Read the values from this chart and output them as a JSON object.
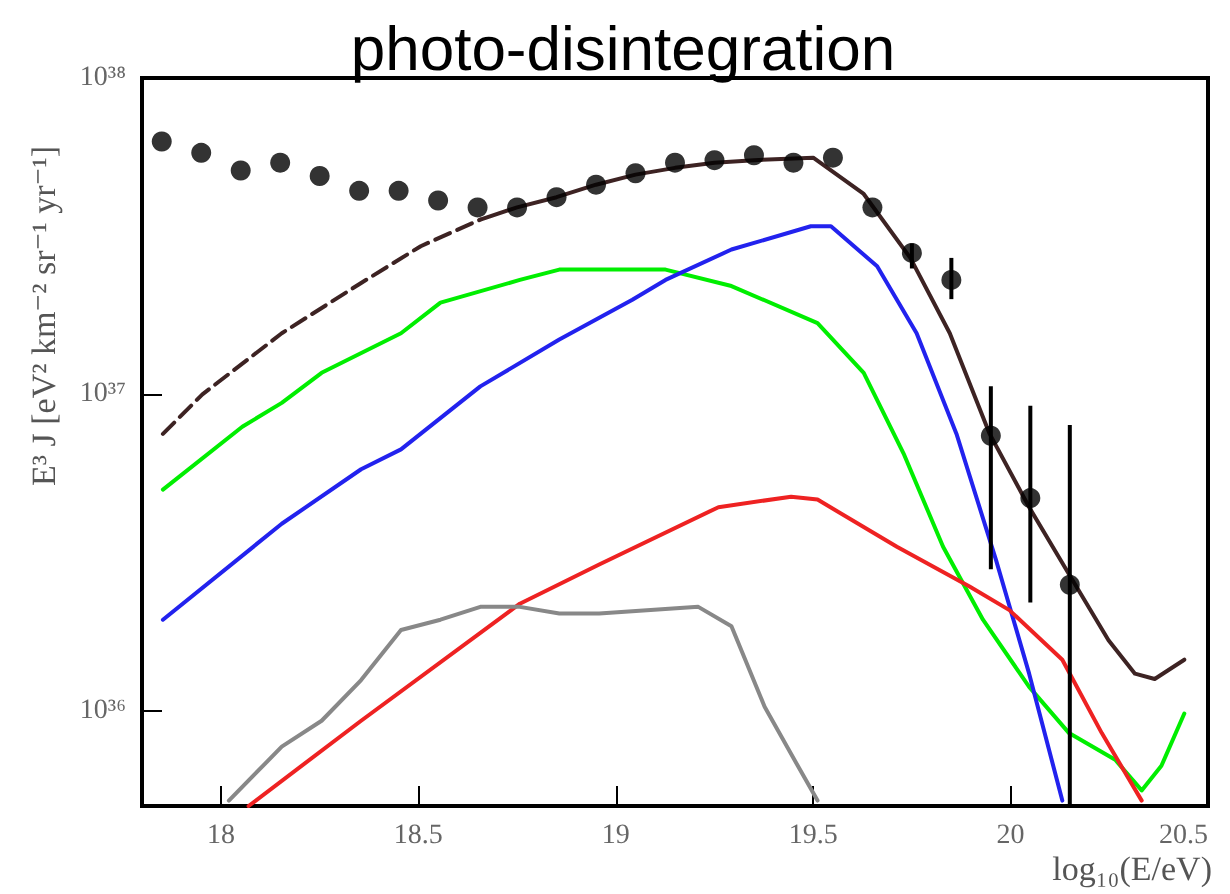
{
  "chart_data": {
    "type": "line",
    "title": "photo-disintegration",
    "xlabel": "log₁₀(E/eV)",
    "ylabel": "E³ J [eV² km⁻² sr⁻¹ yr⁻¹]",
    "log": "y",
    "grid": false,
    "xlim": [
      17.8,
      20.5
    ],
    "xticks": [
      18,
      18.5,
      19,
      19.5,
      20,
      20.5
    ],
    "ylim": [
      5e+35,
      1e+38
    ],
    "yticks": [
      {
        "value": 1e+36,
        "label": "10³⁶"
      },
      {
        "value": 1e+37,
        "label": "10³⁷"
      },
      {
        "value": 1e+38,
        "label": "10³⁸"
      }
    ],
    "series": [
      {
        "color": "#3d2323",
        "line_style": "dashed",
        "x": [
          17.853,
          17.953,
          18.154,
          18.355,
          18.506,
          18.657
        ],
        "values": [
          7.5e+36,
          1e+37,
          1.56e+37,
          2.25e+37,
          2.94e+37,
          3.57e+37
        ]
      },
      {
        "color": "#3d2323",
        "line_style": "solid",
        "x": [
          18.657,
          18.75,
          18.85,
          18.95,
          19.05,
          19.15,
          19.25,
          19.35,
          19.5,
          19.628,
          19.746,
          19.846,
          19.947,
          20.047,
          20.148,
          20.248,
          20.315,
          20.365,
          20.44
        ],
        "values": [
          3.57e+37,
          3.9e+37,
          4.2e+37,
          4.6e+37,
          4.95e+37,
          5.2e+37,
          5.4e+37,
          5.5e+37,
          5.6e+37,
          4.3e+37,
          2.7e+37,
          1.56e+37,
          7.5e+36,
          4.4e+36,
          2.7e+36,
          1.67e+36,
          1.31e+36,
          1.26e+36,
          1.45e+36
        ]
      },
      {
        "color": "#00ee00",
        "line_style": "solid",
        "x": [
          17.853,
          18.054,
          18.154,
          18.255,
          18.456,
          18.556,
          18.757,
          18.857,
          19.042,
          19.126,
          19.293,
          19.511,
          19.628,
          19.729,
          19.829,
          19.93,
          20.047,
          20.148,
          20.265,
          20.332,
          20.382,
          20.44
        ],
        "values": [
          5e+36,
          7.9e+36,
          9.4e+36,
          1.17e+37,
          1.56e+37,
          1.95e+37,
          2.3e+37,
          2.48e+37,
          2.48e+37,
          2.48e+37,
          2.2e+37,
          1.68e+37,
          1.17e+37,
          6.5e+36,
          3.3e+36,
          1.94e+36,
          1.19e+36,
          8.5e+35,
          7e+35,
          5.6e+35,
          6.7e+35,
          9.8e+35
        ]
      },
      {
        "color": "#2222ee",
        "line_style": "solid",
        "x": [
          17.853,
          18.154,
          18.355,
          18.456,
          18.657,
          18.857,
          19.042,
          19.126,
          19.293,
          19.494,
          19.545,
          19.662,
          19.762,
          19.863,
          19.963,
          20.047,
          20.131
        ],
        "values": [
          1.94e+36,
          3.9e+36,
          5.8e+36,
          6.7e+36,
          1.06e+37,
          1.49e+37,
          1.99e+37,
          2.3e+37,
          2.87e+37,
          3.4e+37,
          3.4e+37,
          2.54e+37,
          1.56e+37,
          7.5e+36,
          3e+36,
          1.31e+36,
          5.2e+35
        ]
      },
      {
        "color": "#ee2222",
        "line_style": "solid",
        "x": [
          18.07,
          18.355,
          18.757,
          18.958,
          19.26,
          19.444,
          19.511,
          19.712,
          19.896,
          19.997,
          20.131,
          20.231,
          20.332
        ],
        "values": [
          5e+35,
          9.3e+35,
          2.18e+36,
          2.9e+36,
          4.4e+36,
          4.75e+36,
          4.65e+36,
          3.3e+36,
          2.47e+36,
          2.08e+36,
          1.45e+36,
          8.5e+35,
          5.2e+35
        ]
      },
      {
        "color": "#888888",
        "line_style": "solid",
        "x": [
          18.02,
          18.154,
          18.255,
          18.355,
          18.456,
          18.556,
          18.657,
          18.757,
          18.857,
          18.958,
          19.209,
          19.293,
          19.377,
          19.461,
          19.511
        ],
        "values": [
          5.2e+35,
          7.7e+35,
          9.3e+35,
          1.25e+36,
          1.8e+36,
          1.94e+36,
          2.13e+36,
          2.13e+36,
          2.03e+36,
          2.03e+36,
          2.13e+36,
          1.85e+36,
          1.03e+36,
          6.7e+35,
          5.2e+35
        ]
      },
      {
        "type": "scatter",
        "color": "#000000",
        "marker": "circle",
        "x": [
          17.85,
          17.95,
          18.05,
          18.15,
          18.25,
          18.35,
          18.45,
          18.55,
          18.65,
          18.75,
          18.85,
          18.95,
          19.05,
          19.15,
          19.25,
          19.35,
          19.45,
          19.55,
          19.65,
          19.75,
          19.85,
          19.95,
          20.05,
          20.15
        ],
        "values": [
          6.3e+37,
          5.8e+37,
          5.1e+37,
          5.4e+37,
          4.9e+37,
          4.4e+37,
          4.4e+37,
          4.1e+37,
          3.9e+37,
          3.9e+37,
          4.2e+37,
          4.6e+37,
          5e+37,
          5.4e+37,
          5.5e+37,
          5.7e+37,
          5.4e+37,
          5.6e+37,
          3.9e+37,
          2.8e+37,
          2.3e+37,
          7.4e+36,
          4.7e+36,
          2.5e+36
        ],
        "errors": [
          null,
          null,
          null,
          null,
          null,
          null,
          null,
          null,
          null,
          null,
          null,
          null,
          null,
          null,
          null,
          null,
          null,
          null,
          null,
          [
            2.5e+37,
            3e+37
          ],
          [
            2e+37,
            2.7e+37
          ],
          [
            2.8e+36,
            1.06e+37
          ],
          [
            2.2e+36,
            9.2e+36
          ],
          [
            5e+35,
            8e+36
          ]
        ]
      }
    ]
  }
}
